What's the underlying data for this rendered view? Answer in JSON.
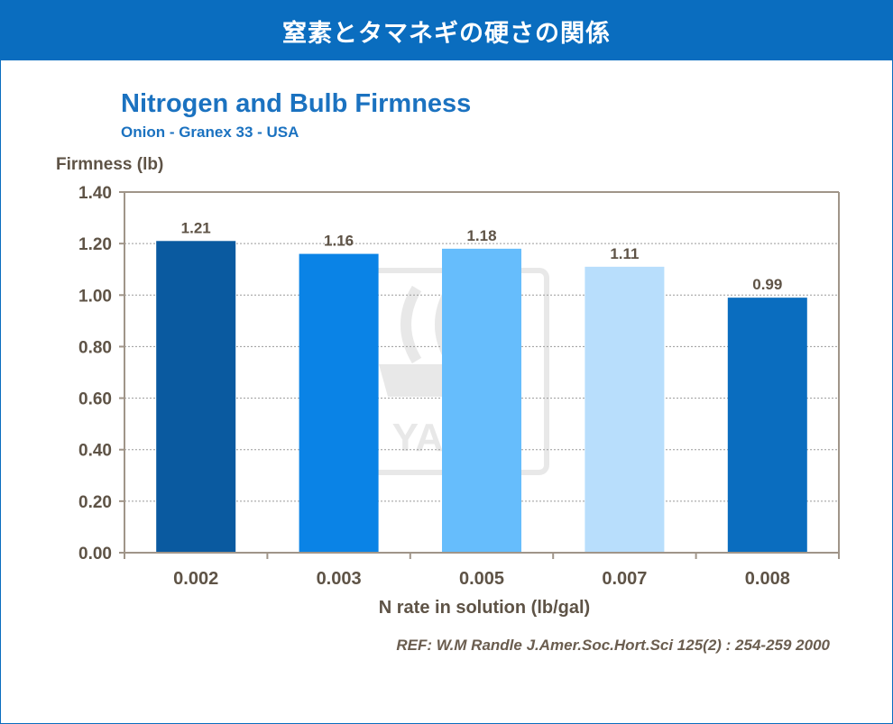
{
  "header": {
    "title": "窒素とタマネギの硬さの関係"
  },
  "reference": "REF: W.M Randle  J.Amer.Soc.Hort.Sci 125(2) : 254-259 2000",
  "watermark": {
    "text": "YARA",
    "color": "#e6e6e6"
  },
  "colors": {
    "header_bg": "#0a6dbf",
    "title": "#1b72c0",
    "axis": "#a09589",
    "text": "#5e5346",
    "bars": [
      "#0a5aa0",
      "#0a83e6",
      "#66bdfc",
      "#b8defc",
      "#0a6dbf"
    ]
  },
  "chart_data": {
    "type": "bar",
    "title": "Nitrogen and Bulb Firmness",
    "subtitle": "Onion  - Granex 33 - USA",
    "ylabel": "Firmness (lb)",
    "xlabel": "N rate in solution (lb/gal)",
    "categories": [
      "0.002",
      "0.003",
      "0.005",
      "0.007",
      "0.008"
    ],
    "values": [
      1.21,
      1.16,
      1.18,
      1.11,
      0.99
    ],
    "data_labels": [
      "1.21",
      "1.16",
      "1.18",
      "1.11",
      "0.99"
    ],
    "ylim": [
      0,
      1.4
    ],
    "yticks": [
      "0.00",
      "0.20",
      "0.40",
      "0.60",
      "0.80",
      "1.00",
      "1.20",
      "1.40"
    ],
    "grid": true,
    "legend": "none"
  }
}
